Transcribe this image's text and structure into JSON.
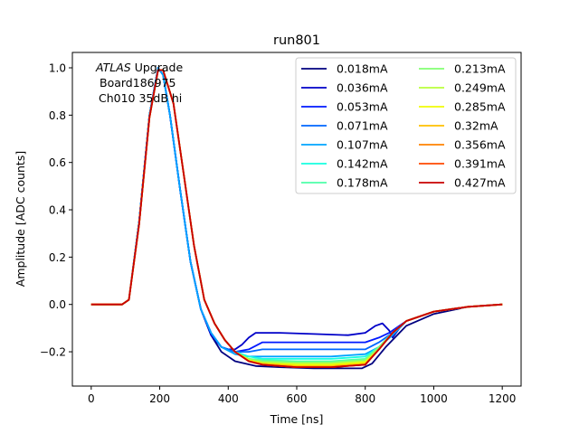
{
  "chart_data": {
    "type": "line",
    "title": "run801",
    "xlabel": "Time [ns]",
    "ylabel": "Amplitude [ADC counts]",
    "xlim": [
      -55,
      1255
    ],
    "ylim": [
      -0.345,
      1.065
    ],
    "xticks": [
      0,
      200,
      400,
      600,
      800,
      1000,
      1200
    ],
    "yticks": [
      -0.2,
      0.0,
      0.2,
      0.4,
      0.6,
      0.8,
      1.0
    ],
    "xtick_labels": [
      "0",
      "200",
      "400",
      "600",
      "800",
      "1000",
      "1200"
    ],
    "ytick_labels": [
      "−0.2",
      "0.0",
      "0.2",
      "0.4",
      "0.6",
      "0.8",
      "1.0"
    ],
    "grid": false,
    "legend_position": "top-right",
    "legend_columns": 2,
    "annotation": {
      "atlas": "ATLAS",
      "upgrade": " Upgrade",
      "line2": "Board186975",
      "line3": "Ch010 35dB hi"
    },
    "series": [
      {
        "name": "0.018mA",
        "color": "#00007f",
        "x": [
          0,
          90,
          110,
          140,
          170,
          195,
          210,
          230,
          260,
          290,
          320,
          350,
          380,
          420,
          480,
          550,
          650,
          750,
          790,
          820,
          860,
          920,
          1000,
          1100,
          1200
        ],
        "y": [
          0,
          0,
          0.02,
          0.35,
          0.8,
          1.0,
          0.97,
          0.8,
          0.48,
          0.18,
          -0.02,
          -0.13,
          -0.2,
          -0.24,
          -0.26,
          -0.265,
          -0.27,
          -0.27,
          -0.27,
          -0.25,
          -0.18,
          -0.09,
          -0.04,
          -0.01,
          0
        ]
      },
      {
        "name": "0.036mA",
        "color": "#0000c8",
        "x": [
          0,
          90,
          110,
          140,
          170,
          195,
          210,
          230,
          260,
          290,
          320,
          350,
          380,
          400,
          420,
          440,
          460,
          480,
          550,
          650,
          750,
          800,
          830,
          850,
          870,
          880,
          900,
          920,
          1000,
          1100,
          1200
        ],
        "y": [
          0,
          0,
          0.02,
          0.35,
          0.8,
          1.0,
          0.97,
          0.8,
          0.48,
          0.18,
          -0.02,
          -0.13,
          -0.18,
          -0.19,
          -0.19,
          -0.17,
          -0.14,
          -0.12,
          -0.12,
          -0.125,
          -0.13,
          -0.12,
          -0.09,
          -0.08,
          -0.11,
          -0.14,
          -0.1,
          -0.07,
          -0.03,
          -0.01,
          0
        ]
      },
      {
        "name": "0.053mA",
        "color": "#0019ff",
        "x": [
          0,
          90,
          110,
          140,
          170,
          195,
          210,
          230,
          260,
          290,
          320,
          350,
          380,
          420,
          460,
          500,
          600,
          700,
          800,
          840,
          870,
          920,
          1000,
          1100,
          1200
        ],
        "y": [
          0,
          0,
          0.02,
          0.35,
          0.8,
          1.0,
          0.97,
          0.8,
          0.48,
          0.18,
          -0.02,
          -0.12,
          -0.18,
          -0.2,
          -0.19,
          -0.16,
          -0.16,
          -0.16,
          -0.16,
          -0.14,
          -0.12,
          -0.07,
          -0.03,
          -0.01,
          0
        ]
      },
      {
        "name": "0.071mA",
        "color": "#0066ff",
        "x": [
          0,
          90,
          110,
          140,
          170,
          195,
          210,
          230,
          260,
          290,
          320,
          350,
          380,
          420,
          460,
          500,
          600,
          700,
          800,
          840,
          880,
          920,
          1000,
          1100,
          1200
        ],
        "y": [
          0,
          0,
          0.02,
          0.35,
          0.8,
          1.0,
          0.97,
          0.8,
          0.48,
          0.18,
          -0.02,
          -0.12,
          -0.18,
          -0.2,
          -0.2,
          -0.19,
          -0.19,
          -0.19,
          -0.19,
          -0.16,
          -0.12,
          -0.07,
          -0.03,
          -0.01,
          0
        ]
      },
      {
        "name": "0.107mA",
        "color": "#00a4ff",
        "x": [
          0,
          90,
          110,
          140,
          170,
          195,
          210,
          230,
          260,
          290,
          320,
          350,
          380,
          420,
          460,
          500,
          600,
          700,
          800,
          840,
          880,
          920,
          1000,
          1100,
          1200
        ],
        "y": [
          0,
          0,
          0.02,
          0.35,
          0.8,
          1.0,
          0.97,
          0.8,
          0.48,
          0.18,
          -0.02,
          -0.12,
          -0.18,
          -0.21,
          -0.22,
          -0.22,
          -0.22,
          -0.22,
          -0.21,
          -0.18,
          -0.13,
          -0.07,
          -0.03,
          -0.01,
          0
        ]
      },
      {
        "name": "0.142mA",
        "color": "#16ffe1",
        "x": [
          0,
          90,
          110,
          140,
          170,
          195,
          210,
          240,
          270,
          300,
          330,
          360,
          390,
          420,
          460,
          500,
          600,
          700,
          800,
          840,
          880,
          920,
          1000,
          1100,
          1200
        ],
        "y": [
          0,
          0,
          0.02,
          0.34,
          0.79,
          0.99,
          0.99,
          0.85,
          0.55,
          0.25,
          0.02,
          -0.08,
          -0.15,
          -0.2,
          -0.22,
          -0.23,
          -0.23,
          -0.23,
          -0.22,
          -0.18,
          -0.12,
          -0.07,
          -0.03,
          -0.01,
          0
        ]
      },
      {
        "name": "0.178mA",
        "color": "#4dffaa",
        "x": [
          0,
          90,
          110,
          140,
          170,
          195,
          210,
          240,
          270,
          300,
          330,
          360,
          390,
          420,
          460,
          500,
          600,
          700,
          800,
          840,
          880,
          920,
          1000,
          1100,
          1200
        ],
        "y": [
          0,
          0,
          0.02,
          0.34,
          0.79,
          0.99,
          0.99,
          0.85,
          0.55,
          0.25,
          0.02,
          -0.08,
          -0.15,
          -0.2,
          -0.23,
          -0.235,
          -0.24,
          -0.24,
          -0.23,
          -0.18,
          -0.12,
          -0.07,
          -0.03,
          -0.01,
          0
        ]
      },
      {
        "name": "0.213mA",
        "color": "#83ff73",
        "x": [
          0,
          90,
          110,
          140,
          170,
          195,
          210,
          240,
          270,
          300,
          330,
          360,
          390,
          420,
          460,
          500,
          600,
          700,
          800,
          840,
          880,
          920,
          1000,
          1100,
          1200
        ],
        "y": [
          0,
          0,
          0.02,
          0.34,
          0.79,
          0.99,
          0.99,
          0.85,
          0.55,
          0.25,
          0.02,
          -0.08,
          -0.15,
          -0.2,
          -0.23,
          -0.24,
          -0.245,
          -0.245,
          -0.235,
          -0.18,
          -0.12,
          -0.07,
          -0.03,
          -0.01,
          0
        ]
      },
      {
        "name": "0.249mA",
        "color": "#baff3c",
        "x": [
          0,
          90,
          110,
          140,
          170,
          195,
          210,
          240,
          270,
          300,
          330,
          360,
          390,
          420,
          460,
          500,
          600,
          700,
          800,
          840,
          880,
          920,
          1000,
          1100,
          1200
        ],
        "y": [
          0,
          0,
          0.02,
          0.34,
          0.79,
          0.99,
          0.99,
          0.85,
          0.55,
          0.25,
          0.02,
          -0.08,
          -0.15,
          -0.2,
          -0.235,
          -0.245,
          -0.25,
          -0.25,
          -0.24,
          -0.19,
          -0.12,
          -0.07,
          -0.03,
          -0.01,
          0
        ]
      },
      {
        "name": "0.285mA",
        "color": "#f1fc06",
        "x": [
          0,
          90,
          110,
          140,
          170,
          195,
          210,
          240,
          270,
          300,
          330,
          360,
          390,
          420,
          460,
          500,
          600,
          700,
          800,
          840,
          880,
          920,
          1000,
          1100,
          1200
        ],
        "y": [
          0,
          0,
          0.02,
          0.34,
          0.79,
          0.99,
          0.99,
          0.85,
          0.55,
          0.25,
          0.02,
          -0.08,
          -0.15,
          -0.2,
          -0.235,
          -0.25,
          -0.255,
          -0.255,
          -0.245,
          -0.19,
          -0.12,
          -0.07,
          -0.03,
          -0.01,
          0
        ]
      },
      {
        "name": "0.32mA",
        "color": "#ffc000",
        "x": [
          0,
          90,
          110,
          140,
          170,
          195,
          210,
          240,
          270,
          300,
          330,
          360,
          390,
          420,
          460,
          500,
          600,
          700,
          800,
          840,
          880,
          920,
          1000,
          1100,
          1200
        ],
        "y": [
          0,
          0,
          0.02,
          0.34,
          0.79,
          0.99,
          0.99,
          0.85,
          0.55,
          0.25,
          0.02,
          -0.08,
          -0.15,
          -0.2,
          -0.24,
          -0.25,
          -0.26,
          -0.26,
          -0.25,
          -0.19,
          -0.12,
          -0.07,
          -0.03,
          -0.01,
          0
        ]
      },
      {
        "name": "0.356mA",
        "color": "#ff8200",
        "x": [
          0,
          90,
          110,
          140,
          170,
          195,
          210,
          240,
          270,
          300,
          330,
          360,
          390,
          420,
          460,
          500,
          600,
          700,
          800,
          840,
          880,
          920,
          1000,
          1100,
          1200
        ],
        "y": [
          0,
          0,
          0.02,
          0.34,
          0.79,
          0.99,
          0.99,
          0.85,
          0.55,
          0.25,
          0.02,
          -0.08,
          -0.15,
          -0.2,
          -0.24,
          -0.255,
          -0.265,
          -0.265,
          -0.255,
          -0.19,
          -0.12,
          -0.07,
          -0.03,
          -0.01,
          0
        ]
      },
      {
        "name": "0.391mA",
        "color": "#ff4800",
        "x": [
          0,
          90,
          110,
          140,
          170,
          195,
          210,
          240,
          270,
          300,
          330,
          360,
          390,
          420,
          460,
          500,
          600,
          700,
          800,
          840,
          880,
          920,
          1000,
          1100,
          1200
        ],
        "y": [
          0,
          0,
          0.02,
          0.34,
          0.79,
          0.99,
          0.99,
          0.85,
          0.55,
          0.25,
          0.02,
          -0.08,
          -0.15,
          -0.2,
          -0.24,
          -0.255,
          -0.265,
          -0.265,
          -0.255,
          -0.19,
          -0.12,
          -0.07,
          -0.03,
          -0.01,
          0
        ]
      },
      {
        "name": "0.427mA",
        "color": "#c80000",
        "x": [
          0,
          90,
          110,
          140,
          170,
          195,
          210,
          240,
          270,
          300,
          330,
          360,
          390,
          420,
          460,
          500,
          600,
          700,
          800,
          840,
          880,
          920,
          1000,
          1100,
          1200
        ],
        "y": [
          0,
          0,
          0.02,
          0.34,
          0.79,
          0.99,
          0.99,
          0.85,
          0.55,
          0.25,
          0.02,
          -0.08,
          -0.15,
          -0.2,
          -0.24,
          -0.255,
          -0.265,
          -0.265,
          -0.255,
          -0.19,
          -0.12,
          -0.07,
          -0.03,
          -0.01,
          0
        ]
      }
    ]
  }
}
